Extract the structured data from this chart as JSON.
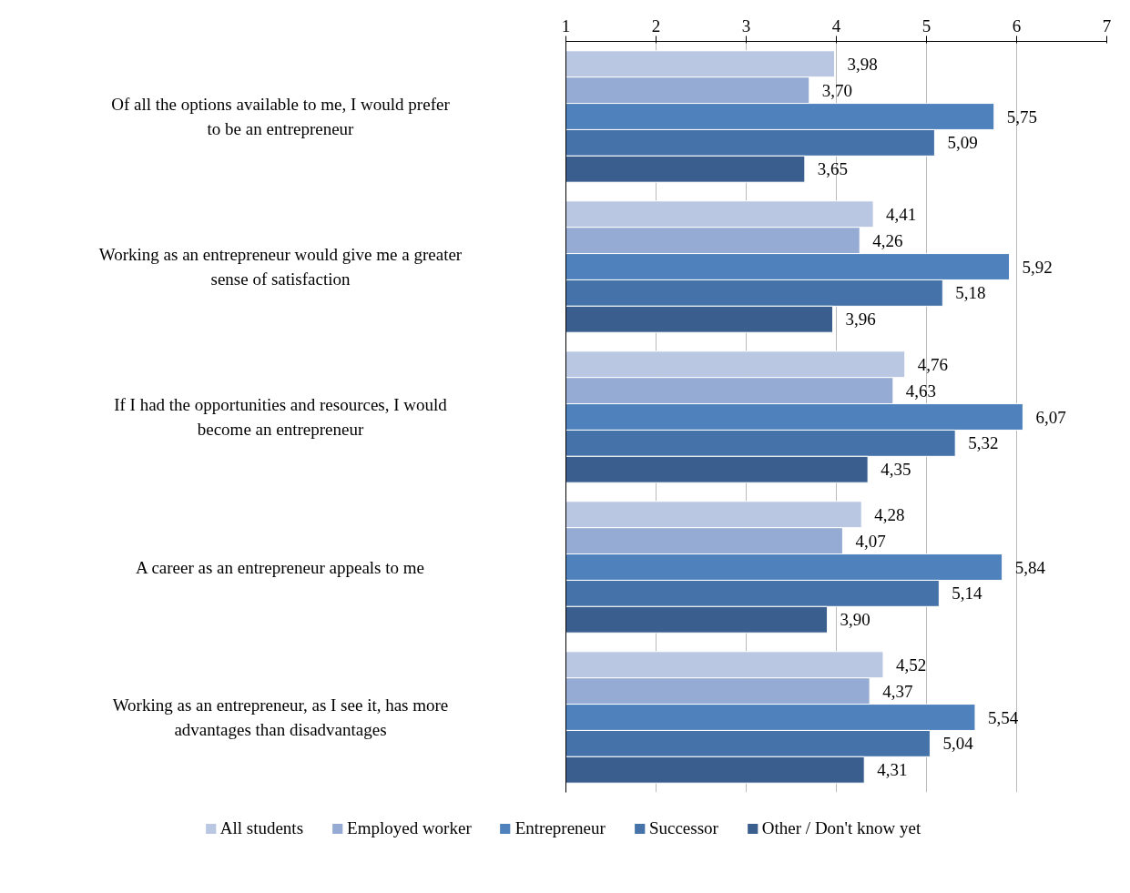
{
  "chart_data": {
    "type": "bar",
    "orientation": "horizontal",
    "categories": [
      "Of all the options available to me, I would prefer to be an entrepreneur",
      "Working as an entrepreneur would give me a greater sense of satisfaction",
      "If I had the opportunities and resources, I would become an entrepreneur",
      "A career as an entrepreneur appeals to me",
      "Working as an entrepreneur, as I see it, has more advantages than disadvantages"
    ],
    "series": [
      {
        "name": "All students",
        "color": "#b9c7e2",
        "values": [
          3.98,
          4.41,
          4.76,
          4.28,
          4.52
        ],
        "value_labels": [
          "3,98",
          "4,41",
          "4,76",
          "4,28",
          "4,52"
        ]
      },
      {
        "name": "Employed worker",
        "color": "#95abd3",
        "values": [
          3.7,
          4.26,
          4.63,
          4.07,
          4.37
        ],
        "value_labels": [
          "3,70",
          "4,26",
          "4,63",
          "4,07",
          "4,37"
        ]
      },
      {
        "name": "Entrepreneur",
        "color": "#4f81bd",
        "values": [
          5.75,
          5.92,
          6.07,
          5.84,
          5.54
        ],
        "value_labels": [
          "5,75",
          "5,92",
          "6,07",
          "5,84",
          "5,54"
        ]
      },
      {
        "name": "Successor",
        "color": "#4573a9",
        "values": [
          5.09,
          5.18,
          5.32,
          5.14,
          5.04
        ],
        "value_labels": [
          "5,09",
          "5,18",
          "5,32",
          "5,14",
          "5,04"
        ]
      },
      {
        "name": "Other / Don't know yet",
        "color": "#3a5f8f",
        "values": [
          3.65,
          3.96,
          4.35,
          3.9,
          4.31
        ],
        "value_labels": [
          "3,65",
          "3,96",
          "4,35",
          "3,90",
          "4,31"
        ]
      }
    ],
    "xlim": [
      1,
      7
    ],
    "xticks": [
      1,
      2,
      3,
      4,
      5,
      6,
      7
    ],
    "grid": "x",
    "legend": "bottom"
  }
}
